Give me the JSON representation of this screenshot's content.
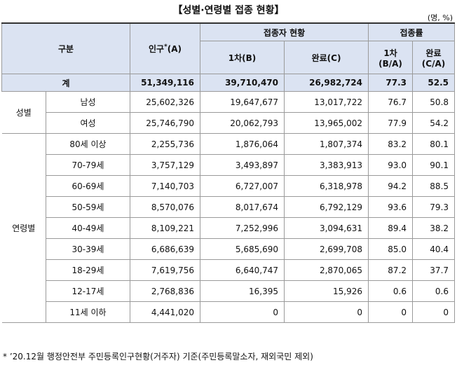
{
  "title": "【성별·연령별 접종 현황】",
  "unit": "(명, %)",
  "header": {
    "category": "구분",
    "population": "인구",
    "population_mark": "*",
    "population_code": "(A)",
    "vaccinated": "접종자 현황",
    "dose1": "1차(B)",
    "complete": "완료(C)",
    "rate": "접종률",
    "rate1": [
      "1차",
      "(B/A)"
    ],
    "rate2": [
      "완료",
      "(C/A)"
    ]
  },
  "total": {
    "label": "계",
    "population": "51,349,116",
    "dose1": "39,710,470",
    "complete": "26,982,724",
    "rate1": "77.3",
    "rate2": "52.5"
  },
  "groups": [
    {
      "label": "성별",
      "rows": [
        {
          "label": "남성",
          "population": "25,602,326",
          "dose1": "19,647,677",
          "complete": "13,017,722",
          "rate1": "76.7",
          "rate2": "50.8"
        },
        {
          "label": "여성",
          "population": "25,746,790",
          "dose1": "20,062,793",
          "complete": "13,965,002",
          "rate1": "77.9",
          "rate2": "54.2"
        }
      ]
    },
    {
      "label": "연령별",
      "rows": [
        {
          "label": "80세 이상",
          "population": "2,255,736",
          "dose1": "1,876,064",
          "complete": "1,807,374",
          "rate1": "83.2",
          "rate2": "80.1"
        },
        {
          "label": "70-79세",
          "population": "3,757,129",
          "dose1": "3,493,897",
          "complete": "3,383,913",
          "rate1": "93.0",
          "rate2": "90.1"
        },
        {
          "label": "60-69세",
          "population": "7,140,703",
          "dose1": "6,727,007",
          "complete": "6,318,978",
          "rate1": "94.2",
          "rate2": "88.5"
        },
        {
          "label": "50-59세",
          "population": "8,570,076",
          "dose1": "8,017,674",
          "complete": "6,792,129",
          "rate1": "93.6",
          "rate2": "79.3"
        },
        {
          "label": "40-49세",
          "population": "8,109,221",
          "dose1": "7,252,996",
          "complete": "3,094,631",
          "rate1": "89.4",
          "rate2": "38.2"
        },
        {
          "label": "30-39세",
          "population": "6,686,639",
          "dose1": "5,685,690",
          "complete": "2,699,708",
          "rate1": "85.0",
          "rate2": "40.4"
        },
        {
          "label": "18-29세",
          "population": "7,619,756",
          "dose1": "6,640,747",
          "complete": "2,870,065",
          "rate1": "87.2",
          "rate2": "37.7"
        },
        {
          "label": "12-17세",
          "population": "2,768,836",
          "dose1": "16,395",
          "complete": "15,926",
          "rate1": "0.6",
          "rate2": "0.6"
        },
        {
          "label": "11세 이하",
          "population": "4,441,020",
          "dose1": "0",
          "complete": "0",
          "rate1": "0",
          "rate2": "0"
        }
      ]
    }
  ],
  "footnote": "* ’20.12월 행정안전부 주민등록인구현황(거주자) 기준(주민등록말소자, 재외국민 제외)"
}
